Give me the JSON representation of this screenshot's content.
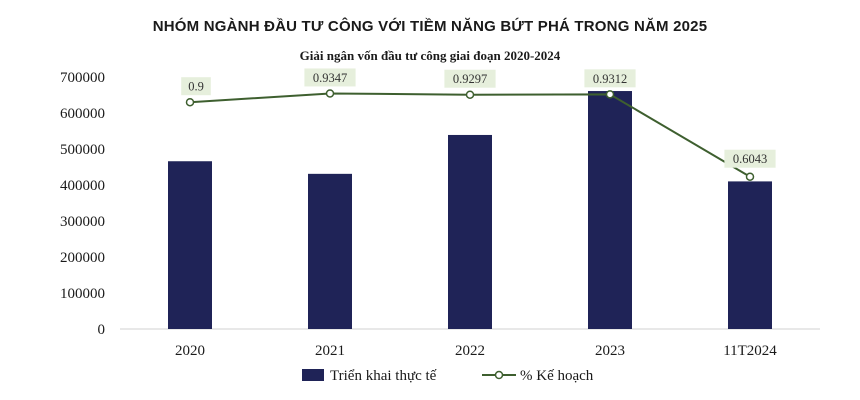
{
  "header": {
    "title": "NHÓM NGÀNH ĐẦU TƯ CÔNG VỚI TIỀM NĂNG BỨT PHÁ TRONG NĂM 2025"
  },
  "chart_data": {
    "type": "bar",
    "title": "Giải ngân vốn đầu tư công giai đoạn 2020-2024",
    "categories": [
      "2020",
      "2021",
      "2022",
      "2023",
      "11T2024"
    ],
    "series": [
      {
        "name": "Triển khai thực tế",
        "type": "bar",
        "color": "#1f2357",
        "values": [
          466000,
          431000,
          539000,
          661000,
          410000
        ]
      },
      {
        "name": "% Kế hoạch",
        "type": "line",
        "color": "#3e5f2f",
        "values": [
          0.9,
          0.9347,
          0.9297,
          0.9312,
          0.6043
        ],
        "labels": [
          "0.9",
          "0.9347",
          "0.9297",
          "0.9312",
          "0.6043"
        ]
      }
    ],
    "y_ticks": [
      "0",
      "100000",
      "200000",
      "300000",
      "400000",
      "500000",
      "600000",
      "700000"
    ],
    "ylim": [
      0,
      700000
    ],
    "y2lim": [
      0,
      1.0
    ],
    "grid": false,
    "legend_position": "bottom",
    "label_bg_color": "#e6efdc"
  }
}
